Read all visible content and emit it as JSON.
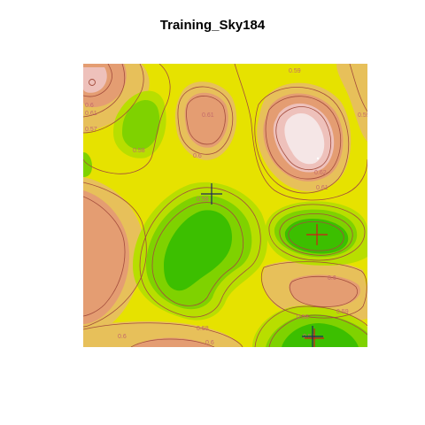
{
  "chart_data": {
    "type": "heatmap",
    "title": "Training_Sky184",
    "xlabel": "",
    "ylabel": "",
    "colors": {
      "green_dark": "#3cbf00",
      "green": "#7fd200",
      "yellow_green": "#b8de00",
      "yellow": "#e6e200",
      "tan": "#e7c05a",
      "salmon": "#e49d72",
      "pink": "#eec1bb",
      "pale": "#f5e6e6",
      "contour": "#a34c3c",
      "label": "#c46a6a"
    },
    "contour_labels": [
      "0.6",
      "0.61",
      "0.57",
      "0.59",
      "0.61",
      "0.6",
      "0.58",
      "0.62",
      "0.61",
      "0.59",
      "0.58",
      "0.6",
      "0.59",
      "0.58",
      "0.6",
      "0.58",
      "0.57",
      "0.6"
    ],
    "markers": [
      {
        "name": "cross-black",
        "color": "#1b2a5a"
      },
      {
        "name": "cross-red-1",
        "color": "#d11a1a"
      },
      {
        "name": "cross-red-2",
        "color": "#d11a1a"
      },
      {
        "name": "cross-black-2",
        "color": "#1b2a5a"
      }
    ]
  }
}
